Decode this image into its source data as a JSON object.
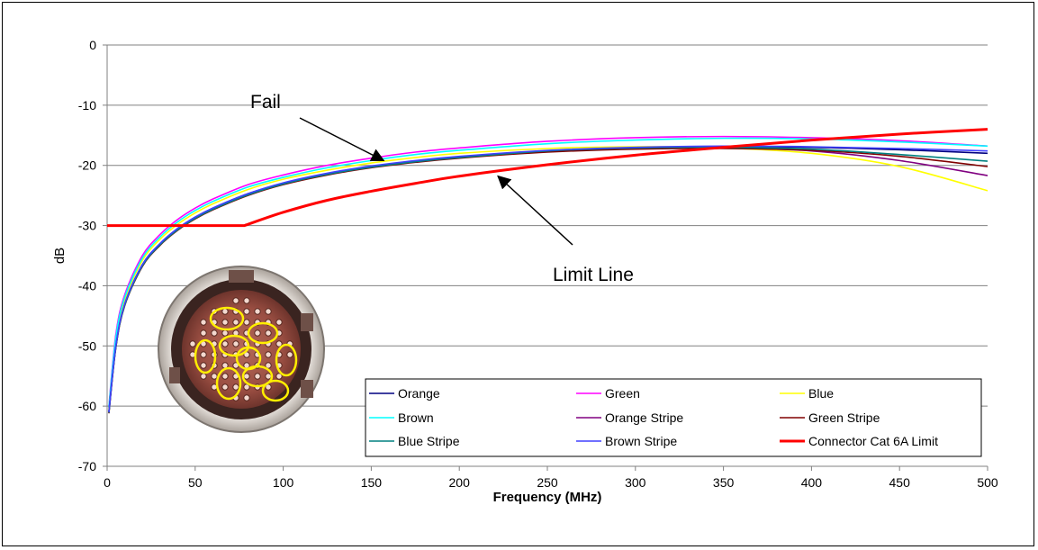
{
  "chart_data": {
    "type": "line",
    "title": "",
    "xlabel": "Frequency (MHz)",
    "ylabel": "dB",
    "xlim": [
      0,
      500
    ],
    "ylim": [
      -70,
      0
    ],
    "xticks": [
      0,
      50,
      100,
      150,
      200,
      250,
      300,
      350,
      400,
      450,
      500
    ],
    "yticks": [
      0,
      -10,
      -20,
      -30,
      -40,
      -50,
      -60,
      -70
    ],
    "grid": "horizontal",
    "legend_position": "bottom-right",
    "x": [
      1,
      5,
      10,
      20,
      30,
      40,
      50,
      60,
      80,
      100,
      125,
      150,
      175,
      200,
      250,
      300,
      350,
      400,
      450,
      500
    ],
    "series": [
      {
        "name": "Orange",
        "color": "#000080",
        "values": [
          -61,
          -50,
          -43,
          -36.5,
          -33,
          -30.5,
          -28.6,
          -27.1,
          -24.7,
          -23,
          -21.4,
          -20.2,
          -19.3,
          -18.6,
          -17.6,
          -17.1,
          -16.9,
          -17,
          -17.4,
          -18
        ]
      },
      {
        "name": "Green",
        "color": "#ff00ff",
        "values": [
          -60,
          -48,
          -41.5,
          -35,
          -31.5,
          -29,
          -27.1,
          -25.6,
          -23.2,
          -21.6,
          -20,
          -18.8,
          -17.8,
          -17.1,
          -16,
          -15.4,
          -15.2,
          -15.4,
          -15.9,
          -16.8
        ]
      },
      {
        "name": "Blue",
        "color": "#ffff00",
        "values": [
          -60.5,
          -49,
          -42.3,
          -35.8,
          -32.3,
          -29.8,
          -27.9,
          -26.4,
          -24,
          -22.3,
          -20.8,
          -19.6,
          -18.7,
          -18,
          -17.2,
          -16.9,
          -17.1,
          -18,
          -20.2,
          -24.2
        ]
      },
      {
        "name": "Brown",
        "color": "#00ffff",
        "values": [
          -60.2,
          -48.5,
          -41.9,
          -35.4,
          -31.9,
          -29.4,
          -27.5,
          -26,
          -23.6,
          -22,
          -20.4,
          -19.2,
          -18.2,
          -17.5,
          -16.4,
          -15.8,
          -15.5,
          -15.6,
          -16.1,
          -16.8
        ]
      },
      {
        "name": "Orange Stripe",
        "color": "#800080",
        "values": [
          -61,
          -50,
          -43.1,
          -36.6,
          -33.1,
          -30.6,
          -28.7,
          -27.2,
          -24.8,
          -23.1,
          -21.5,
          -20.3,
          -19.4,
          -18.7,
          -17.7,
          -17.2,
          -17.1,
          -17.6,
          -19.2,
          -21.7
        ]
      },
      {
        "name": "Green Stripe",
        "color": "#800000",
        "values": [
          -61.2,
          -50.2,
          -43.3,
          -36.8,
          -33.3,
          -30.8,
          -28.9,
          -27.4,
          -25,
          -23.2,
          -21.6,
          -20.4,
          -19.5,
          -18.8,
          -17.8,
          -17.3,
          -17.2,
          -17.5,
          -18.5,
          -20.2
        ]
      },
      {
        "name": "Blue Stripe",
        "color": "#008080",
        "values": [
          -61.1,
          -50.1,
          -43.2,
          -36.7,
          -33.2,
          -30.7,
          -28.8,
          -27.3,
          -24.9,
          -23.1,
          -21.5,
          -20.3,
          -19.4,
          -18.7,
          -17.6,
          -17.1,
          -17,
          -17.3,
          -18.2,
          -19.3
        ]
      },
      {
        "name": "Brown Stripe",
        "color": "#4040ff",
        "values": [
          -61,
          -49.9,
          -43,
          -36.5,
          -33,
          -30.5,
          -28.6,
          -27.1,
          -24.7,
          -22.9,
          -21.3,
          -20.1,
          -19.2,
          -18.5,
          -17.5,
          -17,
          -16.8,
          -16.9,
          -17.2,
          -17.6
        ]
      },
      {
        "name": "Connector Cat 6A Limit",
        "color": "#ff0000",
        "x": [
          0,
          78,
          100,
          125,
          150,
          175,
          200,
          250,
          300,
          350,
          400,
          450,
          500
        ],
        "values": [
          -30,
          -30,
          -27.8,
          -25.8,
          -24.3,
          -23,
          -21.8,
          -19.9,
          -18.3,
          -17,
          -15.8,
          -14.8,
          -14
        ]
      }
    ],
    "annotations": [
      {
        "text": "Fail",
        "arrow_to": {
          "x": 157,
          "y": -19.2
        }
      },
      {
        "text": "Limit Line",
        "arrow_to": {
          "x": 222,
          "y": -21.8
        }
      }
    ]
  }
}
